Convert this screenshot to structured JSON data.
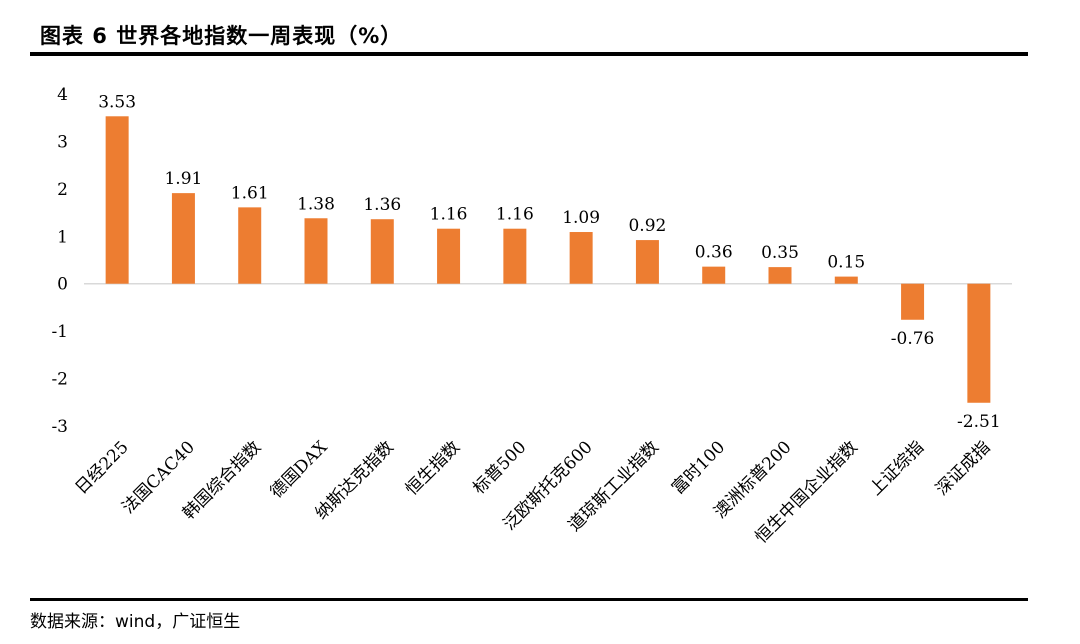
{
  "header": {
    "title": "图表 6 世界各地指数一周表现（%）"
  },
  "footer": {
    "source": "数据来源：wind，广证恒生"
  },
  "chart_data": {
    "type": "bar",
    "title": "图表 6 世界各地指数一周表现（%）",
    "xlabel": "",
    "ylabel": "",
    "ylim": [
      -3,
      4
    ],
    "yticks": [
      "4",
      "3",
      "2",
      "1",
      "0",
      "-1",
      "-2",
      "-3"
    ],
    "grid": false,
    "legend": "none",
    "bar_color": "#ED7D31",
    "categories": [
      "日经225",
      "法国CAC40",
      "韩国综合指数",
      "德国DAX",
      "纳斯达克指数",
      "恒生指数",
      "标普500",
      "泛欧斯托克600",
      "道琼斯工业指数",
      "富时100",
      "澳洲标普200",
      "恒生中国企业指数",
      "上证综指",
      "深证成指"
    ],
    "values": [
      3.53,
      1.91,
      1.61,
      1.38,
      1.36,
      1.16,
      1.16,
      1.09,
      0.92,
      0.36,
      0.35,
      0.15,
      -0.76,
      -2.51
    ],
    "data_labels": [
      "3.53",
      "1.91",
      "1.61",
      "1.38",
      "1.36",
      "1.16",
      "1.16",
      "1.09",
      "0.92",
      "0.36",
      "0.35",
      "0.15",
      "-0.76",
      "-2.51"
    ]
  }
}
